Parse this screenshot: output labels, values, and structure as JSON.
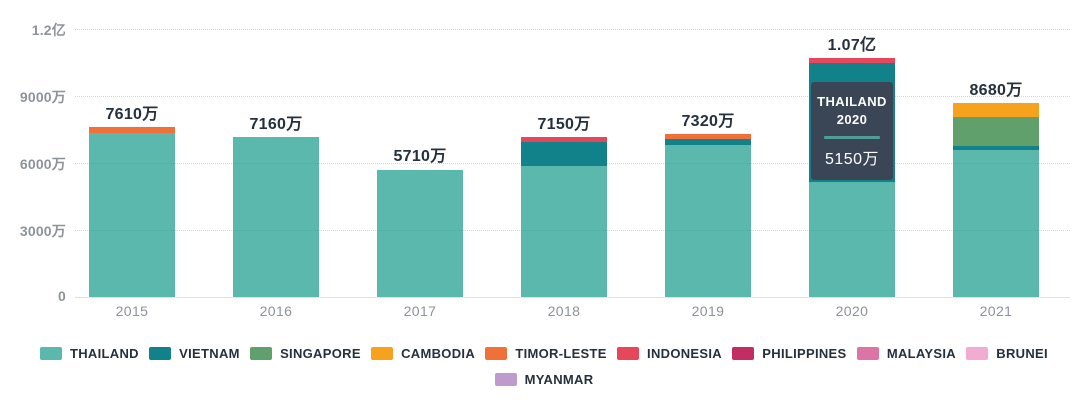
{
  "chart_data": {
    "type": "bar",
    "stacked": true,
    "unit": "万",
    "categories": [
      "2015",
      "2016",
      "2017",
      "2018",
      "2019",
      "2020",
      "2021"
    ],
    "totals_labels": [
      "7610万",
      "7160万",
      "5710万",
      "7150万",
      "7320万",
      "1.07亿",
      "8680万"
    ],
    "yticks": [
      {
        "label": "1.2亿",
        "value": 12000
      },
      {
        "label": "9000万",
        "value": 9000
      },
      {
        "label": "6000万",
        "value": 6000
      },
      {
        "label": "3000万",
        "value": 3000
      },
      {
        "label": "0",
        "value": 0
      }
    ],
    "ylim_wan": [
      0,
      12000
    ],
    "grid": "dotted-horizontal",
    "legend_position": "bottom",
    "series": [
      {
        "name": "THAILAND",
        "color": "#5bb8ad",
        "values": [
          7340,
          7160,
          5710,
          5860,
          6790,
          5150,
          6570
        ]
      },
      {
        "name": "VIETNAM",
        "color": "#12828a",
        "values": [
          0,
          0,
          0,
          1070,
          310,
          5330,
          180
        ]
      },
      {
        "name": "SINGAPORE",
        "color": "#60a06c",
        "values": [
          0,
          0,
          0,
          0,
          0,
          0,
          1300
        ]
      },
      {
        "name": "CAMBODIA",
        "color": "#f7a21c",
        "values": [
          0,
          0,
          0,
          0,
          0,
          0,
          630
        ]
      },
      {
        "name": "TIMOR-LESTE",
        "color": "#f07039",
        "values": [
          270,
          0,
          0,
          0,
          220,
          0,
          0
        ]
      },
      {
        "name": "INDONESIA",
        "color": "#e6475a",
        "values": [
          0,
          0,
          0,
          220,
          0,
          220,
          0
        ]
      },
      {
        "name": "PHILIPPINES",
        "color": "#c22d62",
        "values": [
          0,
          0,
          0,
          0,
          0,
          0,
          0
        ]
      },
      {
        "name": "MALAYSIA",
        "color": "#dd74a3",
        "values": [
          0,
          0,
          0,
          0,
          0,
          0,
          0
        ]
      },
      {
        "name": "BRUNEI",
        "color": "#f2abd1",
        "values": [
          0,
          0,
          0,
          0,
          0,
          0,
          0
        ]
      },
      {
        "name": "MYANMAR",
        "color": "#bd9bcc",
        "values": [
          0,
          0,
          0,
          0,
          0,
          0,
          0
        ]
      }
    ],
    "tooltip": {
      "line1": "THAILAND",
      "line2": "2020",
      "value": "5150万"
    }
  }
}
